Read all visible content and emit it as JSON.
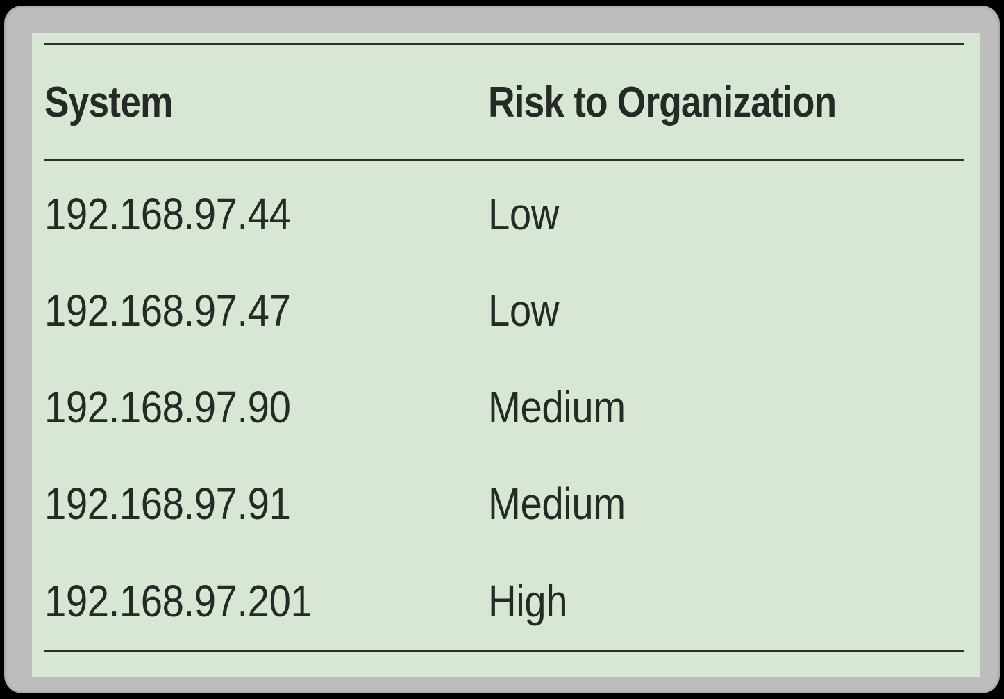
{
  "table": {
    "columns": [
      "System",
      "Risk to Organization"
    ],
    "rows": [
      [
        "192.168.97.44",
        "Low"
      ],
      [
        "192.168.97.47",
        "Low"
      ],
      [
        "192.168.97.90",
        "Medium"
      ],
      [
        "192.168.97.91",
        "Medium"
      ],
      [
        "192.168.97.201",
        "High"
      ]
    ]
  },
  "colors": {
    "background": "#d7e7d3",
    "frame": "#bdbdbd",
    "text": "#262a26",
    "rule": "#2b2e2b"
  }
}
